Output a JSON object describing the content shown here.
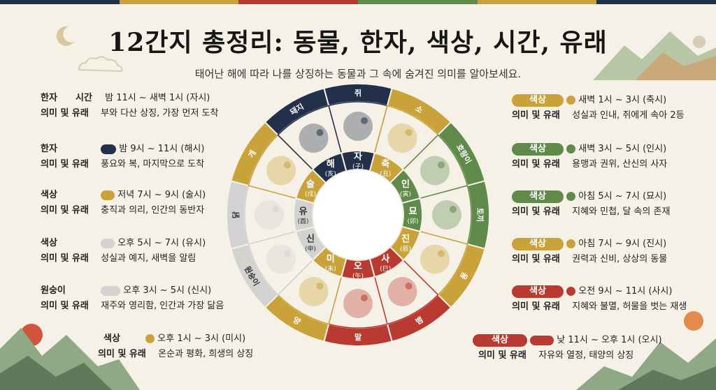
{
  "title": "12간지 총정리: 동물, 한자, 색상, 시간, 유래",
  "subtitle": "태어난 해에 따라 나를 상징하는 동물과 그 속에 숨겨진 의미를 알아보세요.",
  "colors": {
    "background": "#f6f1e6",
    "navy": "#22304a",
    "gold": "#c9a23a",
    "green": "#5f8a4a",
    "red": "#b93a30",
    "gray": "#d2d2d0",
    "top_bar": [
      "#22304a",
      "#c9a23a",
      "#b93a30",
      "#5f8a4a",
      "#c9a23a",
      "#22304a"
    ]
  },
  "left": [
    {
      "l1": "한자",
      "l1b": "시간",
      "v1": "밤 11시 ~ 새벽 1시 (자시)",
      "l2": "의미 및 유래",
      "v2": "부와 다산 상징, 가장 먼저 도착"
    },
    {
      "l1": "한자",
      "v1": "밤 9시 ~ 11시 (해시)",
      "l2": "의미 및 유래",
      "v2": "풍요와 복, 마지막으로 도착"
    },
    {
      "l1": "색상",
      "v1": "저녁 7시 ~ 9시 (술시)",
      "l2": "의미 및 유래",
      "v2": "충직과 의리, 인간의 동반자"
    },
    {
      "l1": "색상",
      "v1": "오후 5시 ~ 7시 (유시)",
      "l2": "의미 및 유래",
      "v2": "성실과 예지, 새벽을 알림"
    },
    {
      "l1": "원숭이",
      "v1": "오후 3시 ~ 5시 (신시)",
      "l2": "의미 및 유래",
      "v2": "재주와 영리함, 인간과 가장 닮음"
    }
  ],
  "bottom_left": {
    "l1": "색상",
    "v1": "오후 1시 ~ 3시 (미시)",
    "l2": "의미 및 유래",
    "v2": "온순과 평화, 희생의 상징"
  },
  "right": [
    {
      "badge": "색상",
      "v1": "새벽 1시 ~ 3시 (축시)",
      "l2": "의미 및 유래",
      "v2": "성실과 인내, 쥐에게 속아 2등"
    },
    {
      "badge": "색상",
      "v1": "새벽 3시 ~ 5시 (인시)",
      "l2": "의미 및 유래",
      "v2": "용맹과 권위, 산신의 사자"
    },
    {
      "badge": "색상",
      "v1": "아침 5시 ~ 7시 (묘시)",
      "l2": "의미 및 유래",
      "v2": "지혜와 민첩, 달 속의 존재"
    },
    {
      "badge": "색상",
      "v1": "아침 7시 ~ 9시 (진시)",
      "l2": "의미 및 유래",
      "v2": "권력과 신비, 상상의 동물"
    },
    {
      "badge": "색상",
      "v1": "오전 9시 ~ 11시 (사시)",
      "l2": "의미 및 유래",
      "v2": "지혜와 불멸, 허물을 벗는 재생"
    }
  ],
  "bottom_right": {
    "badge": "색상",
    "v1": "낮 11시 ~ 오후 1시 (오시)",
    "l2": "의미 및 유래",
    "v2": "자유와 열정, 태양의 상징"
  },
  "wheel": {
    "outer": [
      "쥐",
      "소",
      "호랑이",
      "토끼",
      "용",
      "뱀",
      "말",
      "양",
      "원숭이",
      "닭",
      "개",
      "돼지"
    ],
    "earthly": [
      {
        "k": "자",
        "h": "(子)"
      },
      {
        "k": "축",
        "h": "(丑)"
      },
      {
        "k": "인",
        "h": "(寅)"
      },
      {
        "k": "묘",
        "h": "(卯)"
      },
      {
        "k": "진",
        "h": "(辰)"
      },
      {
        "k": "사",
        "h": "(巳)"
      },
      {
        "k": "오",
        "h": "(午)"
      },
      {
        "k": "미",
        "h": "(未)"
      },
      {
        "k": "신",
        "h": "(申)"
      },
      {
        "k": "유",
        "h": "(酉)"
      },
      {
        "k": "술",
        "h": "(戌)"
      },
      {
        "k": "해",
        "h": "(亥)"
      }
    ],
    "animal_icons": [
      "rat-icon",
      "ox-icon",
      "tiger-icon",
      "rabbit-icon",
      "dragon-icon",
      "snake-icon",
      "horse-icon",
      "sheep-icon",
      "monkey-icon",
      "rooster-icon",
      "dog-icon",
      "pig-icon"
    ],
    "segment_colors": [
      "#22304a",
      "#c9a23a",
      "#5f8a4a",
      "#5f8a4a",
      "#c9a23a",
      "#b93a30",
      "#b93a30",
      "#c9a23a",
      "#d2d2d0",
      "#d2d2d0",
      "#c9a23a",
      "#22304a"
    ]
  }
}
